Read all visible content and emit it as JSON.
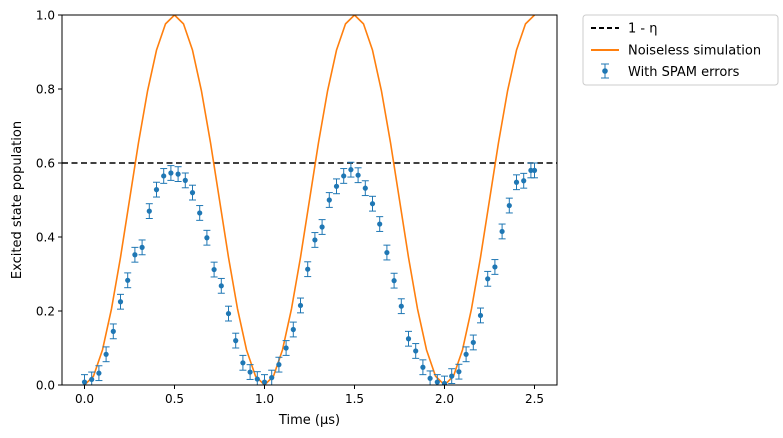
{
  "chart_data": {
    "type": "line",
    "xlabel": "Time (μs)",
    "ylabel": "Excited state population",
    "xlim": [
      -0.125,
      2.625
    ],
    "ylim": [
      0,
      1
    ],
    "xticks": [
      0.0,
      0.5,
      1.0,
      1.5,
      2.0,
      2.5
    ],
    "xtick_labels": [
      "0.0",
      "0.5",
      "1.0",
      "1.5",
      "2.0",
      "2.5"
    ],
    "yticks": [
      0.0,
      0.2,
      0.4,
      0.6,
      0.8,
      1.0
    ],
    "ytick_labels": [
      "0.0",
      "0.2",
      "0.4",
      "0.6",
      "0.8",
      "1.0"
    ],
    "grid": false,
    "legend_position": "outside-right-top",
    "colors": {
      "threshold": "#000000",
      "noiseless": "#ff7f0e",
      "spam": "#1f77b4"
    },
    "threshold": {
      "name": "1 - η",
      "y": 0.6,
      "style": "dashed"
    },
    "series": [
      {
        "name": "Noiseless simulation",
        "type": "line",
        "x": [
          0.0,
          0.05,
          0.1,
          0.15,
          0.2,
          0.25,
          0.3,
          0.35,
          0.4,
          0.45,
          0.5,
          0.55,
          0.6,
          0.65,
          0.7,
          0.75,
          0.8,
          0.85,
          0.9,
          0.95,
          1.0,
          1.05,
          1.1,
          1.15,
          1.2,
          1.25,
          1.3,
          1.35,
          1.4,
          1.45,
          1.5,
          1.55,
          1.6,
          1.65,
          1.7,
          1.75,
          1.8,
          1.85,
          1.9,
          1.95,
          2.0,
          2.05,
          2.1,
          2.15,
          2.2,
          2.25,
          2.3,
          2.35,
          2.4,
          2.45,
          2.5
        ],
        "y": [
          0.0,
          0.024,
          0.095,
          0.206,
          0.345,
          0.5,
          0.655,
          0.794,
          0.905,
          0.976,
          1.0,
          0.976,
          0.905,
          0.794,
          0.655,
          0.5,
          0.345,
          0.206,
          0.095,
          0.024,
          0.0,
          0.024,
          0.095,
          0.206,
          0.345,
          0.5,
          0.655,
          0.794,
          0.905,
          0.976,
          1.0,
          0.976,
          0.905,
          0.794,
          0.655,
          0.5,
          0.345,
          0.206,
          0.095,
          0.024,
          0.0,
          0.024,
          0.095,
          0.206,
          0.345,
          0.5,
          0.655,
          0.794,
          0.905,
          0.976,
          1.0
        ]
      },
      {
        "name": "With SPAM errors",
        "type": "errorbar",
        "x": [
          0.0,
          0.04,
          0.08,
          0.12,
          0.16,
          0.2,
          0.24,
          0.28,
          0.32,
          0.36,
          0.4,
          0.44,
          0.48,
          0.52,
          0.56,
          0.6,
          0.64,
          0.68,
          0.72,
          0.76,
          0.8,
          0.84,
          0.88,
          0.92,
          0.96,
          1.0,
          1.04,
          1.08,
          1.12,
          1.16,
          1.2,
          1.24,
          1.28,
          1.32,
          1.36,
          1.4,
          1.44,
          1.48,
          1.52,
          1.56,
          1.6,
          1.64,
          1.68,
          1.72,
          1.76,
          1.8,
          1.84,
          1.88,
          1.92,
          1.96,
          2.0,
          2.04,
          2.08,
          2.12,
          2.16,
          2.2,
          2.24,
          2.28,
          2.32,
          2.36,
          2.4,
          2.44,
          2.48,
          2.5
        ],
        "y": [
          0.008,
          0.015,
          0.032,
          0.083,
          0.145,
          0.225,
          0.283,
          0.352,
          0.372,
          0.47,
          0.528,
          0.565,
          0.573,
          0.57,
          0.553,
          0.52,
          0.465,
          0.398,
          0.312,
          0.268,
          0.193,
          0.12,
          0.06,
          0.035,
          0.016,
          0.008,
          0.02,
          0.055,
          0.1,
          0.15,
          0.215,
          0.313,
          0.392,
          0.427,
          0.5,
          0.537,
          0.565,
          0.582,
          0.567,
          0.532,
          0.49,
          0.435,
          0.358,
          0.282,
          0.213,
          0.125,
          0.092,
          0.048,
          0.018,
          0.008,
          0.004,
          0.024,
          0.036,
          0.083,
          0.115,
          0.188,
          0.287,
          0.319,
          0.415,
          0.485,
          0.548,
          0.552,
          0.58,
          0.58
        ],
        "yerr": 0.02
      }
    ]
  }
}
